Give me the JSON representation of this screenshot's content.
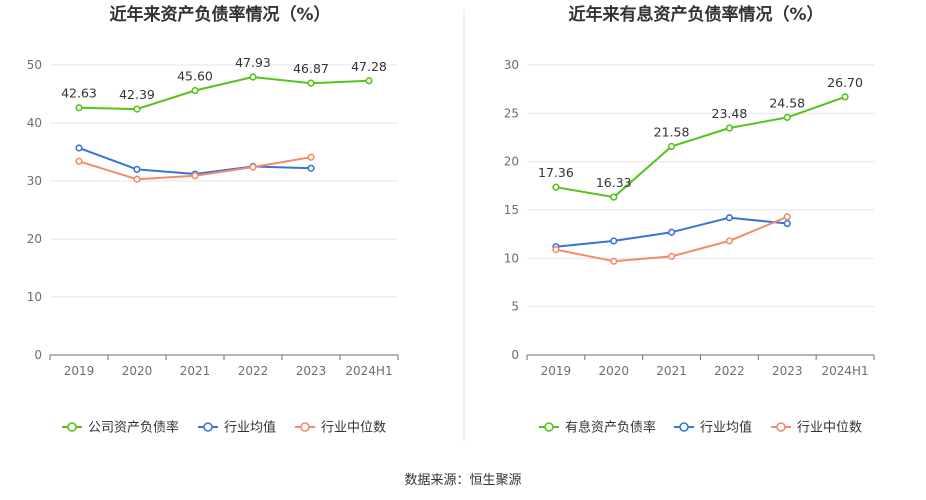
{
  "source": "数据来源：恒生聚源",
  "colors": {
    "company": "#52c41a",
    "industry_avg": "#3b72d6",
    "industry_median": "#f08c6a",
    "grid": "#e6e6e6",
    "axis": "#6e6e6e"
  },
  "chart_data": [
    {
      "type": "line",
      "title": "近年来资产负债率情况（%）",
      "categories": [
        "2019",
        "2020",
        "2021",
        "2022",
        "2023",
        "2024H1"
      ],
      "ylim": [
        0,
        50
      ],
      "yticks": [
        0,
        10,
        20,
        30,
        40,
        50
      ],
      "grid": true,
      "legend_position": "bottom",
      "series": [
        {
          "name": "公司资产负债率",
          "color_key": "company",
          "values": [
            42.63,
            42.39,
            45.6,
            47.93,
            46.87,
            47.28
          ],
          "labels": [
            "42.63",
            "42.39",
            "45.60",
            "47.93",
            "46.87",
            "47.28"
          ]
        },
        {
          "name": "行业均值",
          "color_key": "industry_avg",
          "values": [
            35.7,
            32.0,
            31.2,
            32.5,
            32.2,
            null
          ]
        },
        {
          "name": "行业中位数",
          "color_key": "industry_median",
          "values": [
            33.4,
            30.3,
            30.9,
            32.4,
            34.1,
            null
          ]
        }
      ]
    },
    {
      "type": "line",
      "title": "近年来有息资产负债率情况（%）",
      "categories": [
        "2019",
        "2020",
        "2021",
        "2022",
        "2023",
        "2024H1"
      ],
      "ylim": [
        0,
        30
      ],
      "yticks": [
        0,
        5,
        10,
        15,
        20,
        25,
        30
      ],
      "grid": true,
      "legend_position": "bottom",
      "series": [
        {
          "name": "有息资产负债率",
          "color_key": "company",
          "values": [
            17.36,
            16.33,
            21.58,
            23.48,
            24.58,
            26.7
          ],
          "labels": [
            "17.36",
            "16.33",
            "21.58",
            "23.48",
            "24.58",
            "26.70"
          ]
        },
        {
          "name": "行业均值",
          "color_key": "industry_avg",
          "values": [
            11.2,
            11.8,
            12.7,
            14.2,
            13.6,
            null
          ]
        },
        {
          "name": "行业中位数",
          "color_key": "industry_median",
          "values": [
            10.9,
            9.7,
            10.2,
            11.8,
            14.3,
            null
          ]
        }
      ]
    }
  ]
}
